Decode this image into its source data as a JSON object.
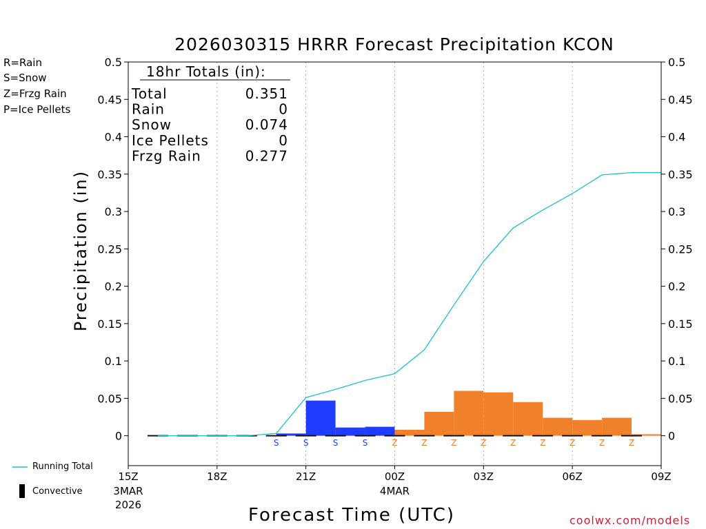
{
  "chart_data": {
    "type": "bar",
    "title": "2026030315 HRRR Forecast Precipitation KCON",
    "ylabel": "Precipitation  (in)",
    "xlabel": "Forecast Time (UTC)",
    "ylim": [
      -0.04,
      0.5
    ],
    "y_ticks": [
      "0.5",
      "0.45",
      "0.4",
      "0.35",
      "0.3",
      "0.25",
      "0.2",
      "0.15",
      "0.1",
      "0.05",
      "0"
    ],
    "y_tick_values": [
      0.5,
      0.45,
      0.4,
      0.35,
      0.3,
      0.25,
      0.2,
      0.15,
      0.1,
      0.05,
      0
    ],
    "xlim_hours": [
      0,
      18
    ],
    "x_ticks": [
      {
        "hour": 0,
        "label": "15Z",
        "sub": "3MAR",
        "sub2": "2026"
      },
      {
        "hour": 3,
        "label": "18Z",
        "sub": "",
        "sub2": ""
      },
      {
        "hour": 6,
        "label": "21Z",
        "sub": "",
        "sub2": ""
      },
      {
        "hour": 9,
        "label": "00Z",
        "sub": "4MAR",
        "sub2": ""
      },
      {
        "hour": 12,
        "label": "03Z",
        "sub": "",
        "sub2": ""
      },
      {
        "hour": 15,
        "label": "06Z",
        "sub": "",
        "sub2": ""
      },
      {
        "hour": 18,
        "label": "09Z",
        "sub": "",
        "sub2": ""
      }
    ],
    "bars": [
      {
        "start": 5,
        "end": 6,
        "value": 0.003,
        "type": "S"
      },
      {
        "start": 6,
        "end": 7,
        "value": 0.047,
        "type": "S"
      },
      {
        "start": 7,
        "end": 8,
        "value": 0.011,
        "type": "S"
      },
      {
        "start": 8,
        "end": 9,
        "value": 0.012,
        "type": "S"
      },
      {
        "start": 9,
        "end": 10,
        "value": 0.008,
        "type": "Z"
      },
      {
        "start": 10,
        "end": 11,
        "value": 0.032,
        "type": "Z"
      },
      {
        "start": 11,
        "end": 12,
        "value": 0.06,
        "type": "Z"
      },
      {
        "start": 12,
        "end": 13,
        "value": 0.058,
        "type": "Z"
      },
      {
        "start": 13,
        "end": 14,
        "value": 0.045,
        "type": "Z"
      },
      {
        "start": 14,
        "end": 15,
        "value": 0.024,
        "type": "Z"
      },
      {
        "start": 15,
        "end": 16,
        "value": 0.021,
        "type": "Z"
      },
      {
        "start": 16,
        "end": 17,
        "value": 0.024,
        "type": "Z"
      },
      {
        "start": 17,
        "end": 18,
        "value": 0.002,
        "type": "Z"
      }
    ],
    "type_marks": [
      {
        "hour": 5,
        "label": "S"
      },
      {
        "hour": 6,
        "label": "S"
      },
      {
        "hour": 7,
        "label": "S"
      },
      {
        "hour": 8,
        "label": "S"
      },
      {
        "hour": 9,
        "label": "Z"
      },
      {
        "hour": 10,
        "label": "Z"
      },
      {
        "hour": 11,
        "label": "Z"
      },
      {
        "hour": 12,
        "label": "Z"
      },
      {
        "hour": 13,
        "label": "Z"
      },
      {
        "hour": 14,
        "label": "Z"
      },
      {
        "hour": 15,
        "label": "Z"
      },
      {
        "hour": 16,
        "label": "Z"
      },
      {
        "hour": 17,
        "label": "Z"
      }
    ],
    "running_total": {
      "name": "Running Total",
      "x": [
        1,
        2,
        3,
        4,
        5,
        6,
        7,
        8,
        9,
        10,
        11,
        12,
        13,
        14,
        15,
        16,
        17,
        18
      ],
      "y": [
        0,
        0,
        0,
        0,
        0.003,
        0.051,
        0.062,
        0.074,
        0.083,
        0.115,
        0.175,
        0.233,
        0.278,
        0.302,
        0.324,
        0.349,
        0.352,
        0.352
      ]
    },
    "convective_hours": [
      1,
      2,
      3,
      4,
      5,
      6,
      7,
      8,
      9,
      10,
      11,
      12,
      13,
      14,
      15,
      16,
      17
    ]
  },
  "colors": {
    "snow": "#1f3cff",
    "frzg": "#f0812a",
    "rain": "#22dd22",
    "ice": "#e0308a",
    "line": "#19c3c6",
    "credit": "#d01e3a"
  },
  "legend": {
    "rain": "R=Rain",
    "snow": "S=Snow",
    "frzg": "Z=Frzg Rain",
    "ice": "P=Ice Pellets"
  },
  "totals": {
    "header": "18hr Totals (in):",
    "rows": [
      {
        "label": "Total",
        "value": "0.351"
      },
      {
        "label": "Rain",
        "value": "0"
      },
      {
        "label": "Snow",
        "value": "0.074"
      },
      {
        "label": "Ice Pellets",
        "value": "0"
      },
      {
        "label": "Frzg Rain",
        "value": "0.277"
      }
    ]
  },
  "bottom_legend": {
    "running_total": "Running Total",
    "convective": "Convective"
  },
  "credit": "coolwx.com/models"
}
